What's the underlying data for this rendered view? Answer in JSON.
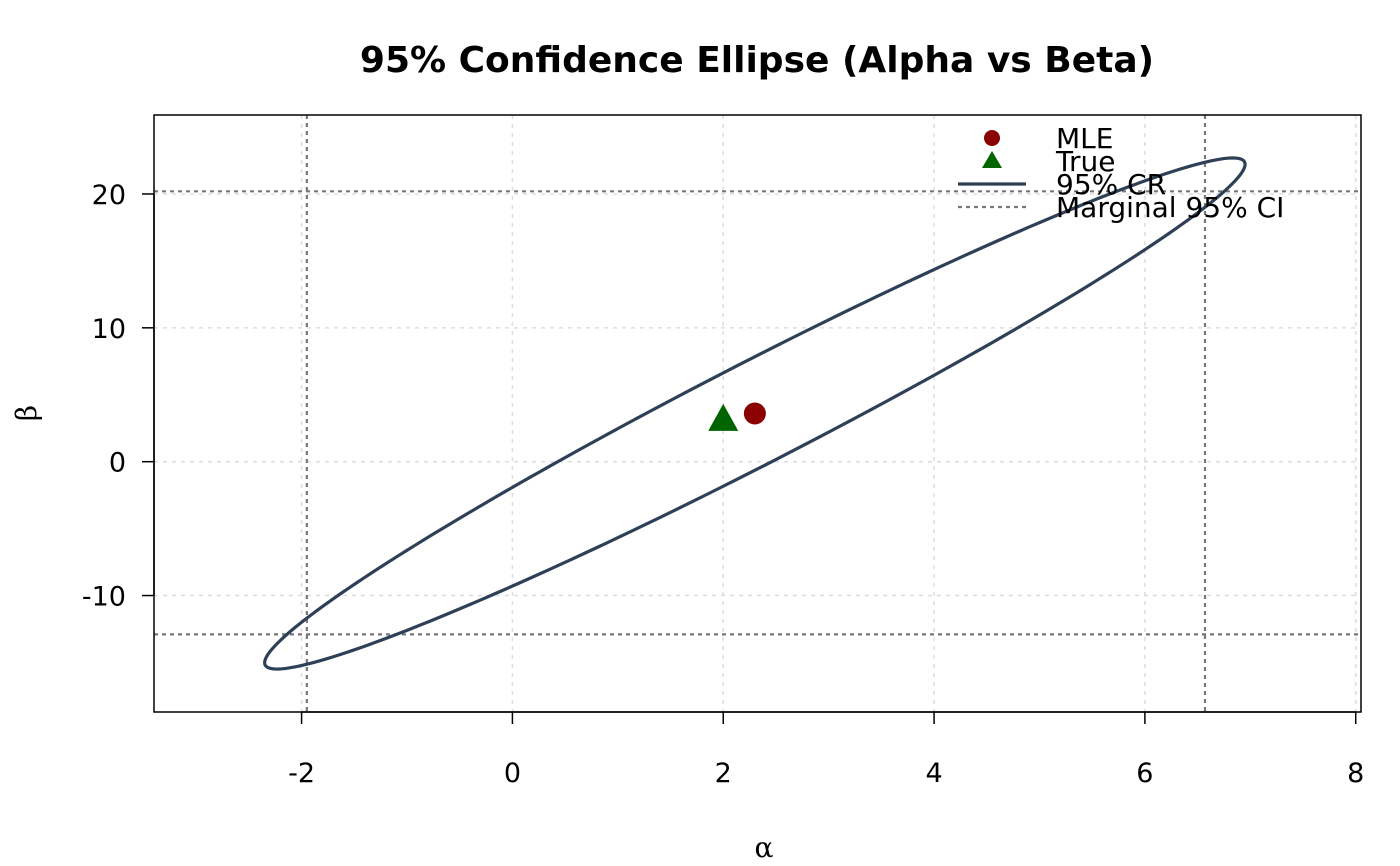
{
  "chart_data": {
    "type": "scatter",
    "title": "95% Confidence Ellipse (Alpha vs Beta)",
    "xlabel": "α",
    "ylabel": "β",
    "xlim": [
      -3.4,
      8.05
    ],
    "ylim": [
      -18.7,
      25.9
    ],
    "x_ticks": [
      -2,
      0,
      2,
      4,
      6,
      8
    ],
    "y_ticks": [
      -10,
      0,
      10,
      20
    ],
    "x_tick_labels": [
      "-2",
      "0",
      "2",
      "4",
      "6",
      "8"
    ],
    "y_tick_labels": [
      "-10",
      "0",
      "10",
      "20"
    ],
    "grid": true,
    "legend_position": "top-right",
    "points": [
      {
        "name": "MLE",
        "x": 2.3,
        "y": 3.6,
        "marker": "circle",
        "color": "#8b0000"
      },
      {
        "name": "True",
        "x": 2.0,
        "y": 3.2,
        "marker": "triangle",
        "color": "#006400"
      }
    ],
    "ellipse": {
      "name": "95% CR",
      "center": [
        2.3,
        3.6
      ],
      "sd_x": 1.9,
      "sd_y": 7.8,
      "correlation": 0.975,
      "color": "#2e4057"
    },
    "marginal_ci": {
      "name": "Marginal 95% CI",
      "alpha": [
        -1.95,
        6.57
      ],
      "beta": [
        -12.9,
        20.2
      ],
      "color": "#777777"
    },
    "legend": [
      {
        "label": "MLE",
        "symbol": "circle",
        "color": "#8b0000"
      },
      {
        "label": "True",
        "symbol": "triangle",
        "color": "#006400"
      },
      {
        "label": "95% CR",
        "symbol": "line",
        "color": "#2e4057"
      },
      {
        "label": "Marginal 95% CI",
        "symbol": "dashed",
        "color": "#777777"
      }
    ]
  }
}
